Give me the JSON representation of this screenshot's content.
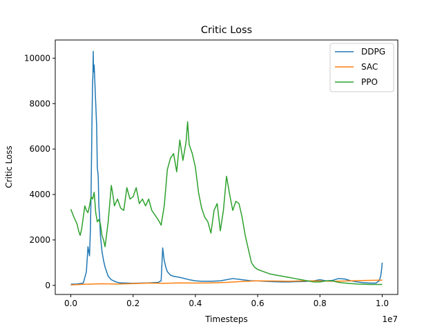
{
  "chart_data": {
    "type": "line",
    "title": "Critic Loss",
    "xlabel": "Timesteps",
    "ylabel": "Critic Loss",
    "x_offset_text": "1e7",
    "xlim": [
      -0.05,
      1.05
    ],
    "ylim": [
      -400,
      10800
    ],
    "x_ticks": [
      0.0,
      0.2,
      0.4,
      0.6,
      0.8,
      1.0
    ],
    "x_tick_labels": [
      "0.0",
      "0.2",
      "0.4",
      "0.6",
      "0.8",
      "1.0"
    ],
    "y_ticks": [
      0,
      2000,
      4000,
      6000,
      8000,
      10000
    ],
    "y_tick_labels": [
      "0",
      "2000",
      "4000",
      "6000",
      "8000",
      "10000"
    ],
    "grid": false,
    "legend_position": "top-right",
    "series": [
      {
        "name": "DDPG",
        "color": "#1f77b4",
        "x": [
          0.0,
          0.02,
          0.04,
          0.05,
          0.055,
          0.06,
          0.063,
          0.065,
          0.068,
          0.07,
          0.071,
          0.072,
          0.073,
          0.075,
          0.077,
          0.08,
          0.083,
          0.085,
          0.088,
          0.09,
          0.093,
          0.095,
          0.1,
          0.105,
          0.11,
          0.115,
          0.12,
          0.13,
          0.14,
          0.15,
          0.16,
          0.18,
          0.2,
          0.22,
          0.25,
          0.28,
          0.29,
          0.295,
          0.298,
          0.3,
          0.305,
          0.31,
          0.32,
          0.33,
          0.35,
          0.38,
          0.4,
          0.42,
          0.45,
          0.48,
          0.5,
          0.52,
          0.55,
          0.58,
          0.6,
          0.62,
          0.65,
          0.68,
          0.7,
          0.72,
          0.75,
          0.78,
          0.8,
          0.82,
          0.84,
          0.86,
          0.88,
          0.9,
          0.92,
          0.94,
          0.96,
          0.98,
          0.99,
          0.995,
          0.998,
          1.0
        ],
        "y": [
          50,
          60,
          100,
          600,
          1700,
          1300,
          2500,
          4000,
          7300,
          9000,
          9200,
          10300,
          9400,
          9700,
          9000,
          8000,
          7000,
          5200,
          4800,
          3500,
          2900,
          2200,
          1500,
          1100,
          800,
          600,
          400,
          250,
          180,
          130,
          110,
          100,
          90,
          100,
          110,
          130,
          200,
          1650,
          1300,
          1100,
          800,
          600,
          450,
          400,
          350,
          250,
          200,
          180,
          180,
          200,
          250,
          300,
          250,
          200,
          200,
          180,
          160,
          150,
          150,
          160,
          170,
          200,
          250,
          200,
          220,
          300,
          280,
          200,
          150,
          120,
          100,
          100,
          200,
          400,
          700,
          1000
        ]
      },
      {
        "name": "SAC",
        "color": "#ff7f0e",
        "x": [
          0.0,
          0.05,
          0.1,
          0.15,
          0.2,
          0.25,
          0.3,
          0.35,
          0.4,
          0.45,
          0.5,
          0.55,
          0.6,
          0.65,
          0.7,
          0.75,
          0.8,
          0.85,
          0.9,
          0.95,
          1.0
        ],
        "y": [
          20,
          50,
          70,
          60,
          80,
          100,
          90,
          110,
          100,
          110,
          130,
          170,
          200,
          190,
          180,
          200,
          190,
          180,
          200,
          220,
          230
        ]
      },
      {
        "name": "PPO",
        "color": "#2ca02c",
        "x": [
          0.0,
          0.01,
          0.02,
          0.025,
          0.03,
          0.035,
          0.04,
          0.045,
          0.05,
          0.055,
          0.06,
          0.065,
          0.07,
          0.075,
          0.08,
          0.085,
          0.09,
          0.095,
          0.1,
          0.105,
          0.11,
          0.12,
          0.13,
          0.135,
          0.14,
          0.15,
          0.16,
          0.17,
          0.18,
          0.19,
          0.2,
          0.21,
          0.22,
          0.23,
          0.24,
          0.25,
          0.26,
          0.27,
          0.28,
          0.29,
          0.3,
          0.31,
          0.32,
          0.33,
          0.34,
          0.35,
          0.36,
          0.37,
          0.375,
          0.38,
          0.39,
          0.4,
          0.41,
          0.42,
          0.43,
          0.44,
          0.45,
          0.46,
          0.47,
          0.48,
          0.49,
          0.5,
          0.51,
          0.52,
          0.53,
          0.54,
          0.55,
          0.56,
          0.57,
          0.58,
          0.59,
          0.6,
          0.62,
          0.64,
          0.66,
          0.68,
          0.7,
          0.72,
          0.74,
          0.76,
          0.78,
          0.8,
          0.82,
          0.84,
          0.86,
          0.88,
          0.9,
          0.92,
          0.94,
          0.96,
          0.98,
          1.0
        ],
        "y": [
          3350,
          3000,
          2700,
          2400,
          2200,
          2500,
          3000,
          3500,
          3300,
          3200,
          3500,
          3900,
          3800,
          4100,
          3200,
          2800,
          2900,
          2700,
          2200,
          2000,
          1700,
          2800,
          4400,
          4000,
          3500,
          3800,
          3400,
          3300,
          4300,
          3800,
          3900,
          4300,
          3600,
          3800,
          3500,
          3800,
          3300,
          3100,
          2900,
          2650,
          3500,
          5100,
          5600,
          5800,
          5000,
          6400,
          5500,
          6300,
          7200,
          6200,
          5800,
          5200,
          4100,
          3400,
          3000,
          2800,
          2300,
          3300,
          3600,
          2400,
          3300,
          4800,
          4000,
          3300,
          3700,
          3600,
          3000,
          2200,
          1600,
          1000,
          800,
          700,
          600,
          500,
          450,
          400,
          350,
          300,
          250,
          200,
          150,
          150,
          200,
          200,
          130,
          100,
          80,
          60,
          50,
          40,
          40,
          40
        ]
      }
    ]
  }
}
